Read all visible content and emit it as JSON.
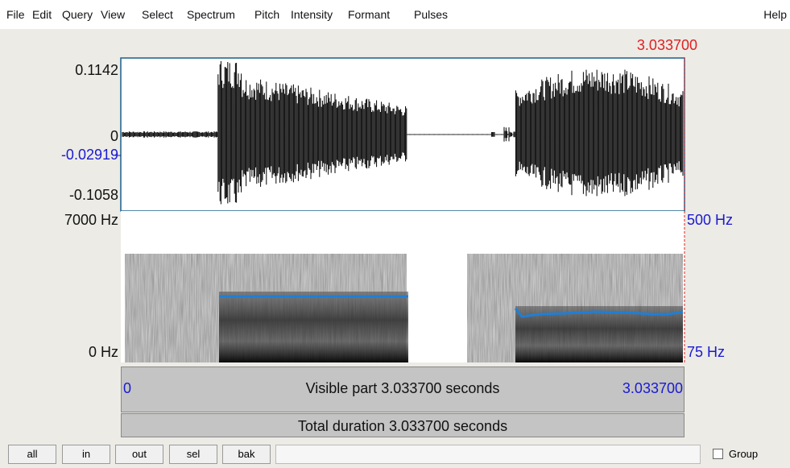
{
  "menu": [
    "File",
    "Edit",
    "Query",
    "View",
    "Select",
    "Spectrum",
    "Pitch",
    "Intensity",
    "Formant",
    "Pulses"
  ],
  "help": "Help",
  "cursor_time": "3.033700",
  "waveform": {
    "max": "0.1142",
    "zero": "0",
    "cursor": "-0.02919",
    "min": "-0.1058"
  },
  "spectrogram": {
    "top": "7000 Hz",
    "bottom": "0 Hz",
    "pitch_top": "500 Hz",
    "pitch_bottom": "75 Hz"
  },
  "visible": {
    "start": "0",
    "label": "Visible part 3.033700 seconds",
    "end": "3.033700"
  },
  "total": "Total duration 3.033700 seconds",
  "buttons": [
    "all",
    "in",
    "out",
    "sel",
    "bak"
  ],
  "group": "Group"
}
